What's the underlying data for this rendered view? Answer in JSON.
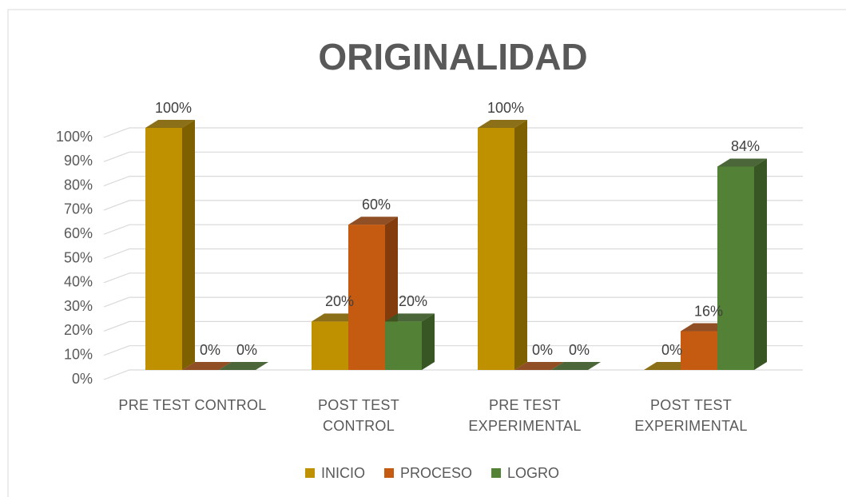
{
  "chart_data": {
    "type": "bar3d",
    "title": "ORIGINALIDAD",
    "categories": [
      "PRE TEST CONTROL",
      "POST TEST\nCONTROL",
      "PRE TEST\nEXPERIMENTAL",
      "POST TEST\nEXPERIMENTAL"
    ],
    "series": [
      {
        "name": "INICIO",
        "color": "#bf9000",
        "side": "#7f6000",
        "values": [
          100,
          20,
          100,
          0
        ],
        "value_labels": [
          "100%",
          "20%",
          "100%",
          "0%"
        ]
      },
      {
        "name": "PROCESO",
        "color": "#c55a11",
        "side": "#843c0c",
        "values": [
          0,
          60,
          0,
          16
        ],
        "value_labels": [
          "0%",
          "60%",
          "0%",
          "16%"
        ]
      },
      {
        "name": "LOGRO",
        "color": "#538135",
        "side": "#375623",
        "values": [
          0,
          20,
          0,
          84
        ],
        "value_labels": [
          "0%",
          "20%",
          "0%",
          "84%"
        ]
      }
    ],
    "ylim": [
      0,
      100
    ],
    "yticks": [
      {
        "value": 0,
        "label": "0%"
      },
      {
        "value": 10,
        "label": "10%"
      },
      {
        "value": 20,
        "label": "20%"
      },
      {
        "value": 30,
        "label": "30%"
      },
      {
        "value": 40,
        "label": "40%"
      },
      {
        "value": 50,
        "label": "50%"
      },
      {
        "value": 60,
        "label": "60%"
      },
      {
        "value": 70,
        "label": "70%"
      },
      {
        "value": 80,
        "label": "80%"
      },
      {
        "value": 90,
        "label": "90%"
      },
      {
        "value": 100,
        "label": "100%"
      }
    ],
    "grid": true,
    "legend": "bottom"
  }
}
